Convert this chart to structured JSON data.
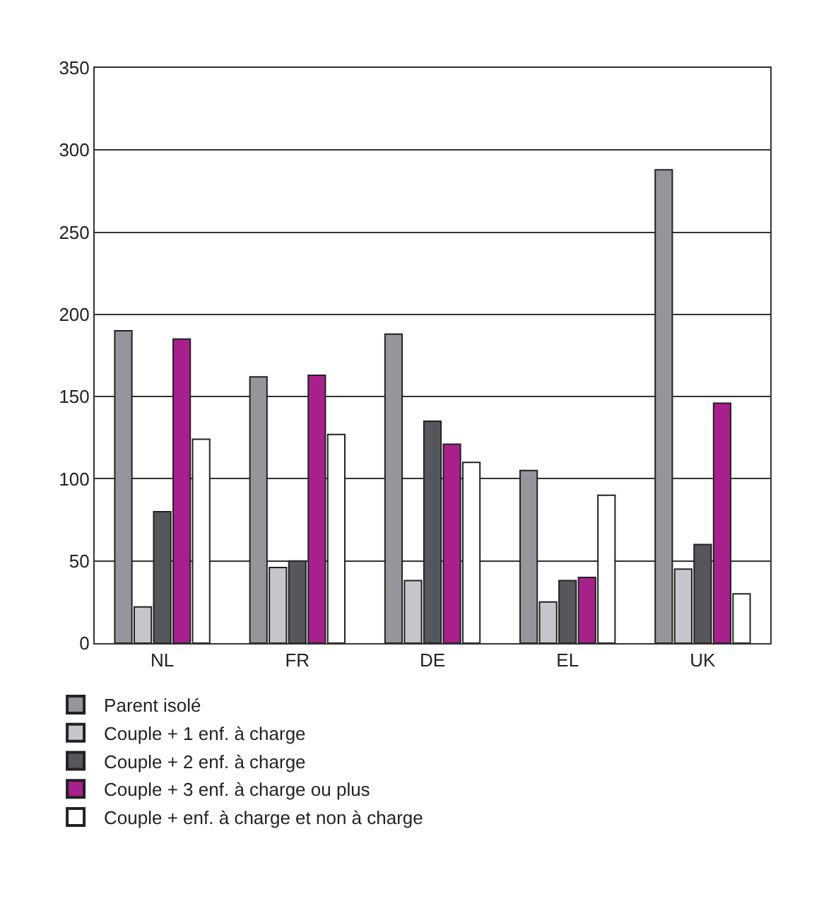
{
  "chart_data": {
    "type": "bar",
    "categories": [
      "NL",
      "FR",
      "DE",
      "EL",
      "UK"
    ],
    "series": [
      {
        "name": "Parent isolé",
        "color": "#94969c",
        "values": [
          190,
          162,
          188,
          105,
          288
        ]
      },
      {
        "name": "Couple + 1 enf. à charge",
        "color": "#c4c6cb",
        "values": [
          22,
          46,
          38,
          25,
          45
        ]
      },
      {
        "name": "Couple + 2 enf. à charge",
        "color": "#55575c",
        "values": [
          80,
          50,
          135,
          38,
          60
        ]
      },
      {
        "name": "Couple + 3 enf. à charge ou plus",
        "color": "#a8208c",
        "values": [
          185,
          163,
          121,
          40,
          146
        ]
      },
      {
        "name": "Couple + enf. à charge et non à charge",
        "color": "#ffffff",
        "values": [
          124,
          127,
          110,
          90,
          30
        ]
      }
    ],
    "ylim": [
      0,
      350
    ],
    "yticks": [
      0,
      50,
      100,
      150,
      200,
      250,
      300,
      350
    ],
    "grid": "y",
    "legend": "bottom"
  }
}
